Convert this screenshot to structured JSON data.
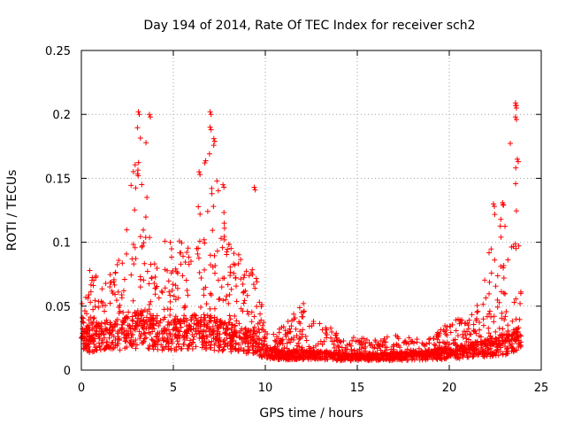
{
  "chart_data": {
    "type": "scatter",
    "title": "Day 194 of 2014, Rate Of TEC Index for receiver sch2",
    "xlabel": "GPS time / hours",
    "ylabel": "ROTI / TECUs",
    "xlim": [
      0,
      25
    ],
    "ylim": [
      0,
      0.25
    ],
    "xticks": [
      0,
      5,
      10,
      15,
      20,
      25
    ],
    "yticks": [
      0,
      0.05,
      0.1,
      0.15,
      0.2,
      0.25
    ],
    "xtick_labels": [
      "0",
      "5",
      "10",
      "15",
      "20",
      "25"
    ],
    "ytick_labels": [
      "0",
      "0.05",
      "0.1",
      "0.15",
      "0.2",
      "0.25"
    ],
    "grid": true,
    "marker": "+",
    "series": [
      {
        "name": "ROTI",
        "color": "#ff0000",
        "x_range": [
          0,
          23.9
        ],
        "envelope": {
          "x": [
            0,
            0.5,
            1,
            1.5,
            2,
            2.5,
            3,
            3.5,
            4,
            4.5,
            5,
            5.5,
            6,
            6.5,
            7,
            7.5,
            8,
            8.5,
            9,
            9.5,
            10,
            11,
            12,
            13,
            14,
            15,
            16,
            17,
            18,
            19,
            20,
            20.5,
            21,
            21.5,
            22,
            22.5,
            23,
            23.5,
            23.9
          ],
          "base": [
            0.025,
            0.027,
            0.028,
            0.029,
            0.03,
            0.032,
            0.035,
            0.035,
            0.032,
            0.03,
            0.03,
            0.03,
            0.032,
            0.033,
            0.032,
            0.03,
            0.028,
            0.026,
            0.025,
            0.022,
            0.015,
            0.012,
            0.013,
            0.012,
            0.011,
            0.011,
            0.011,
            0.011,
            0.012,
            0.012,
            0.014,
            0.015,
            0.016,
            0.017,
            0.019,
            0.02,
            0.022,
            0.025,
            0.025
          ],
          "peak": [
            0.06,
            0.08,
            0.07,
            0.075,
            0.09,
            0.14,
            0.2,
            0.19,
            0.1,
            0.1,
            0.11,
            0.1,
            0.1,
            0.15,
            0.2,
            0.15,
            0.1,
            0.09,
            0.1,
            0.09,
            0.03,
            0.035,
            0.055,
            0.04,
            0.028,
            0.025,
            0.025,
            0.03,
            0.025,
            0.025,
            0.04,
            0.04,
            0.045,
            0.05,
            0.09,
            0.13,
            0.13,
            0.21,
            0.06
          ]
        },
        "notable_points": [
          {
            "x": 3.1,
            "y": 0.202
          },
          {
            "x": 3.7,
            "y": 0.2
          },
          {
            "x": 7.0,
            "y": 0.202
          },
          {
            "x": 7.0,
            "y": 0.19
          },
          {
            "x": 7.2,
            "y": 0.181
          },
          {
            "x": 6.4,
            "y": 0.155
          },
          {
            "x": 7.7,
            "y": 0.145
          },
          {
            "x": 9.4,
            "y": 0.143
          },
          {
            "x": 23.6,
            "y": 0.209
          },
          {
            "x": 23.6,
            "y": 0.207
          },
          {
            "x": 23.6,
            "y": 0.198
          },
          {
            "x": 23.7,
            "y": 0.165
          },
          {
            "x": 22.4,
            "y": 0.13
          },
          {
            "x": 22.9,
            "y": 0.131
          }
        ]
      }
    ]
  }
}
